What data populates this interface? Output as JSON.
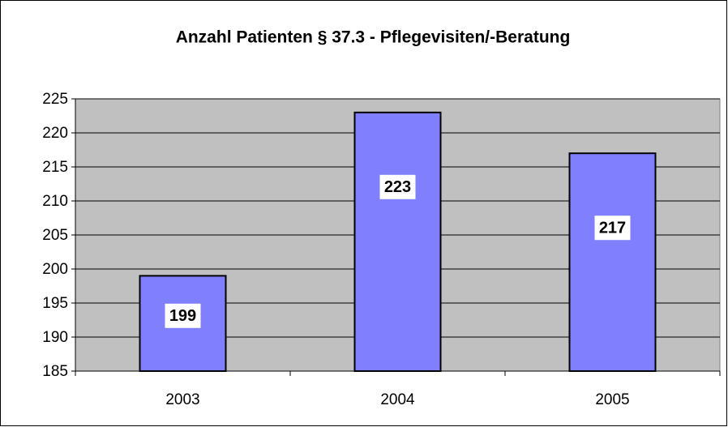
{
  "chart_data": {
    "type": "bar",
    "title": "Anzahl Patienten § 37.3 - Pflegevisiten/-Beratung",
    "categories": [
      "2003",
      "2004",
      "2005"
    ],
    "values": [
      199,
      223,
      217
    ],
    "color": "#8080ff",
    "ylim": [
      185,
      225
    ],
    "yticks": [
      185,
      190,
      195,
      200,
      205,
      210,
      215,
      220,
      225
    ],
    "grid": true
  }
}
